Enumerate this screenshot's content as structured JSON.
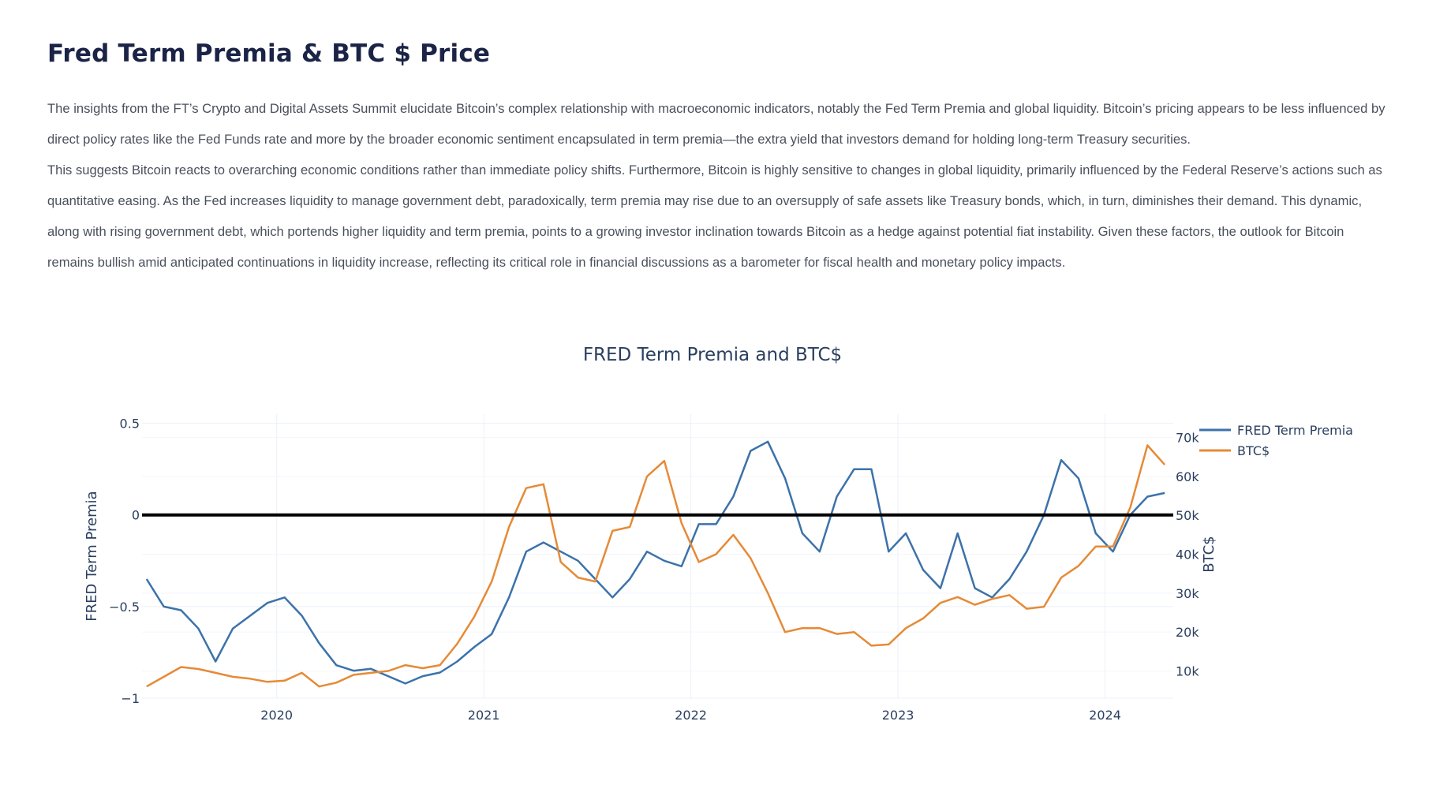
{
  "page": {
    "title": "Fred Term Premia & BTC $ Price",
    "paragraphs": [
      "The insights from the FT’s Crypto and Digital Assets Summit elucidate Bitcoin’s complex relationship with macroeconomic indicators, notably the Fed Term Premia and global liquidity. Bitcoin’s pricing appears to be less influenced by direct policy rates like the Fed Funds rate and more by the broader economic sentiment encapsulated in term premia—the extra yield that investors demand for holding long-term Treasury securities.",
      "This suggests Bitcoin reacts to overarching economic conditions rather than immediate policy shifts. Furthermore, Bitcoin is highly sensitive to changes in global liquidity, primarily influenced by the Federal Reserve’s actions such as quantitative easing. As the Fed increases liquidity to manage government debt, paradoxically, term premia may rise due to an oversupply of safe assets like Treasury bonds, which, in turn, diminishes their demand. This dynamic, along with rising government debt, which portends higher liquidity and term premia, points to a growing investor inclination towards Bitcoin as a hedge against potential fiat instability. Given these factors, the outlook for Bitcoin remains bullish amid anticipated continuations in liquidity increase, reflecting its critical role in financial discussions as a barometer for fiscal health and monetary policy impacts."
    ]
  },
  "chart_data": {
    "type": "line",
    "title": "FRED Term Premia and BTC$",
    "ylabel": "FRED Term Premia",
    "y2label": "BTC$",
    "ylim": [
      -1,
      0.55
    ],
    "y2lim": [
      3000,
      76000
    ],
    "xlim": [
      "2019-05-07",
      "2024-04-30"
    ],
    "x_ticks": [
      "2020",
      "2021",
      "2022",
      "2023",
      "2024"
    ],
    "y_ticks": [
      0.5,
      0,
      -0.5,
      -1
    ],
    "y_tick_labels": [
      "0.5",
      "0",
      "−0.5",
      "−1"
    ],
    "y2_ticks": [
      10000,
      20000,
      30000,
      40000,
      50000,
      60000,
      70000
    ],
    "y2_tick_labels": [
      "10k",
      "20k",
      "30k",
      "40k",
      "50k",
      "60k",
      "70k"
    ],
    "zero_line": 0,
    "grid": true,
    "legend_position": "top-right",
    "series": [
      {
        "name": "FRED Term Premia",
        "axis": "left",
        "color": "#3c72aa",
        "x": [
          "2019-05",
          "2019-06",
          "2019-07",
          "2019-08",
          "2019-09",
          "2019-10",
          "2019-11",
          "2019-12",
          "2020-01",
          "2020-02",
          "2020-03",
          "2020-04",
          "2020-05",
          "2020-06",
          "2020-07",
          "2020-08",
          "2020-09",
          "2020-10",
          "2020-11",
          "2020-12",
          "2021-01",
          "2021-02",
          "2021-03",
          "2021-04",
          "2021-05",
          "2021-06",
          "2021-07",
          "2021-08",
          "2021-09",
          "2021-10",
          "2021-11",
          "2021-12",
          "2022-01",
          "2022-02",
          "2022-03",
          "2022-04",
          "2022-05",
          "2022-06",
          "2022-07",
          "2022-08",
          "2022-09",
          "2022-10",
          "2022-11",
          "2022-12",
          "2023-01",
          "2023-02",
          "2023-03",
          "2023-04",
          "2023-05",
          "2023-06",
          "2023-07",
          "2023-08",
          "2023-09",
          "2023-10",
          "2023-11",
          "2023-12",
          "2024-01",
          "2024-02",
          "2024-03",
          "2024-04"
        ],
        "values": [
          -0.35,
          -0.5,
          -0.52,
          -0.62,
          -0.8,
          -0.62,
          -0.55,
          -0.48,
          -0.45,
          -0.55,
          -0.7,
          -0.82,
          -0.85,
          -0.84,
          -0.88,
          -0.92,
          -0.88,
          -0.86,
          -0.8,
          -0.72,
          -0.65,
          -0.45,
          -0.2,
          -0.15,
          -0.2,
          -0.25,
          -0.35,
          -0.45,
          -0.35,
          -0.2,
          -0.25,
          -0.28,
          -0.05,
          -0.05,
          0.1,
          0.35,
          0.4,
          0.2,
          -0.1,
          -0.2,
          0.1,
          0.25,
          0.25,
          -0.2,
          -0.1,
          -0.3,
          -0.4,
          -0.1,
          -0.4,
          -0.45,
          -0.35,
          -0.2,
          0,
          0.3,
          0.2,
          -0.1,
          -0.2,
          0,
          0.1,
          0.12
        ]
      },
      {
        "name": "BTC$",
        "axis": "right",
        "color": "#e68a36",
        "x": [
          "2019-05",
          "2019-06",
          "2019-07",
          "2019-08",
          "2019-09",
          "2019-10",
          "2019-11",
          "2019-12",
          "2020-01",
          "2020-02",
          "2020-03",
          "2020-04",
          "2020-05",
          "2020-06",
          "2020-07",
          "2020-08",
          "2020-09",
          "2020-10",
          "2020-11",
          "2020-12",
          "2021-01",
          "2021-02",
          "2021-03",
          "2021-04",
          "2021-05",
          "2021-06",
          "2021-07",
          "2021-08",
          "2021-09",
          "2021-10",
          "2021-11",
          "2021-12",
          "2022-01",
          "2022-02",
          "2022-03",
          "2022-04",
          "2022-05",
          "2022-06",
          "2022-07",
          "2022-08",
          "2022-09",
          "2022-10",
          "2022-11",
          "2022-12",
          "2023-01",
          "2023-02",
          "2023-03",
          "2023-04",
          "2023-05",
          "2023-06",
          "2023-07",
          "2023-08",
          "2023-09",
          "2023-10",
          "2023-11",
          "2023-12",
          "2024-01",
          "2024-02",
          "2024-03",
          "2024-04"
        ],
        "values": [
          6000,
          8500,
          11000,
          10500,
          9500,
          8500,
          8000,
          7200,
          7500,
          9500,
          6000,
          7000,
          9000,
          9500,
          10000,
          11500,
          10700,
          11500,
          17000,
          24000,
          33000,
          47000,
          57000,
          58000,
          38000,
          34000,
          33000,
          46000,
          47000,
          60000,
          64000,
          48000,
          38000,
          40000,
          45000,
          39000,
          30000,
          20000,
          21000,
          21000,
          19500,
          20000,
          16500,
          16800,
          21000,
          23500,
          27500,
          29000,
          27000,
          28500,
          29500,
          26000,
          26500,
          34000,
          37000,
          42000,
          42000,
          52000,
          68000,
          63000
        ]
      }
    ]
  }
}
